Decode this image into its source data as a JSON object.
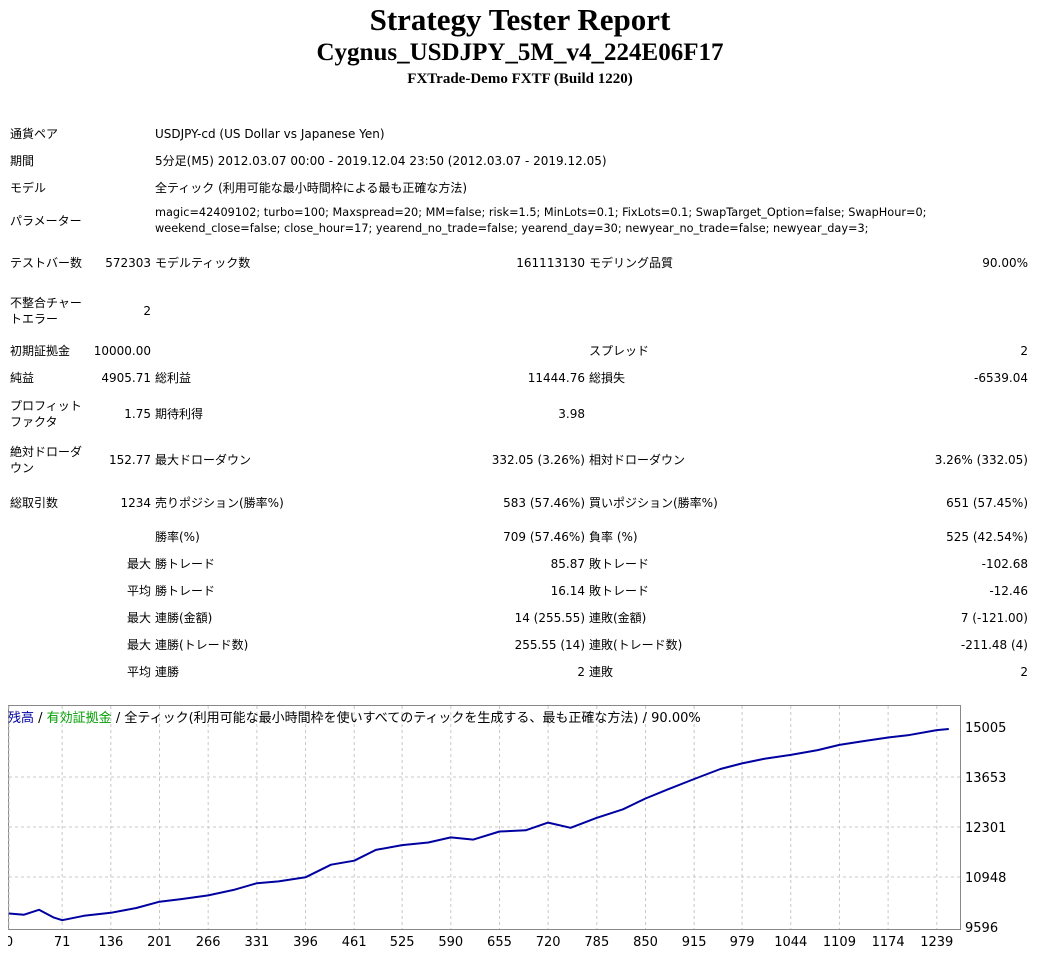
{
  "header": {
    "title": "Strategy Tester Report",
    "ea_name": "Cygnus_USDJPY_5M_v4_224E06F17",
    "server": "FXTrade-Demo FXTF (Build 1220)"
  },
  "info": {
    "symbol_label": "通貨ペア",
    "symbol_value": "USDJPY-cd (US Dollar vs Japanese Yen)",
    "period_label": "期間",
    "period_value": "5分足(M5) 2012.03.07 00:00 - 2019.12.04 23:50 (2012.03.07 - 2019.12.05)",
    "model_label": "モデル",
    "model_value": "全ティック (利用可能な最小時間枠による最も正確な方法)",
    "params_label": "パラメーター",
    "params_value": "magic=42409102; turbo=100; Maxspread=20; MM=false; risk=1.5; MinLots=0.1; FixLots=0.1; SwapTarget_Option=false; SwapHour=0; weekend_close=false; close_hour=17; yearend_no_trade=false; yearend_day=30; newyear_no_trade=false; newyear_day=3;"
  },
  "stats": {
    "bars_label": "テストバー数",
    "bars_value": "572303",
    "ticks_label": "モデルティック数",
    "ticks_value": "161113130",
    "quality_label": "モデリング品質",
    "quality_value": "90.00%",
    "mismatch_label": "不整合チャートエラー",
    "mismatch_value": "2",
    "deposit_label": "初期証拠金",
    "deposit_value": "10000.00",
    "spread_label": "スプレッド",
    "spread_value": "2",
    "net_label": "純益",
    "net_value": "4905.71",
    "gross_profit_label": "総利益",
    "gross_profit_value": "11444.76",
    "gross_loss_label": "総損失",
    "gross_loss_value": "-6539.04",
    "pf_label": "プロフィットファクタ",
    "pf_value": "1.75",
    "expected_label": "期待利得",
    "expected_value": "3.98",
    "abs_dd_label": "絶対ドローダウン",
    "abs_dd_value": "152.77",
    "max_dd_label": "最大ドローダウン",
    "max_dd_value": "332.05 (3.26%)",
    "rel_dd_label": "相対ドローダウン",
    "rel_dd_value": "3.26% (332.05)",
    "trades_label": "総取引数",
    "trades_value": "1234",
    "short_label": "売りポジション(勝率%)",
    "short_value": "583 (57.46%)",
    "long_label": "買いポジション(勝率%)",
    "long_value": "651 (57.45%)",
    "win_label": "勝率(%)",
    "win_value": "709 (57.46%)",
    "loss_label": "負率 (%)",
    "loss_value": "525 (42.54%)",
    "max_word": "最大",
    "avg_word": "平均",
    "win_trade_label": "勝トレード",
    "loss_trade_label": "敗トレード",
    "max_win_value": "85.87",
    "max_loss_value": "-102.68",
    "avg_win_value": "16.14",
    "avg_loss_value": "-12.46",
    "consec_win_money_label": "連勝(金額)",
    "consec_win_money_value": "14 (255.55)",
    "consec_loss_money_label": "連敗(金額)",
    "consec_loss_money_value": "7 (-121.00)",
    "consec_win_count_label": "連勝(トレード数)",
    "consec_win_count_value": "255.55 (14)",
    "consec_loss_count_label": "連敗(トレード数)",
    "consec_loss_count_value": "-211.48 (4)",
    "avg_consec_win_label": "連勝",
    "avg_consec_win_value": "2",
    "avg_consec_loss_label": "連敗",
    "avg_consec_loss_value": "2"
  },
  "chart_legend": {
    "balance": "残高",
    "sep1": " / ",
    "equity": "有効証拠金",
    "sep2": " / ",
    "model": "全ティック(利用可能な最小時間枠を使いすべてのティックを生成する、最も正確な方法) / 90.00%"
  },
  "colors": {
    "balance": "#0000a0",
    "equity": "#00a000",
    "grid": "#c8c8c8"
  },
  "chart_data": {
    "type": "line",
    "title": "",
    "xlabel": "",
    "ylabel": "",
    "x_ticks": [
      "0",
      "71",
      "136",
      "201",
      "266",
      "331",
      "396",
      "461",
      "525",
      "590",
      "655",
      "720",
      "785",
      "850",
      "915",
      "979",
      "1044",
      "1109",
      "1174",
      "1239"
    ],
    "y_ticks": [
      "15005",
      "13653",
      "12301",
      "10948",
      "9596"
    ],
    "xlim": [
      0,
      1270
    ],
    "ylim": [
      9596,
      15005
    ],
    "grid": true,
    "series": [
      {
        "name": "残高",
        "x": [
          0,
          20,
          40,
          60,
          71,
          100,
          136,
          170,
          201,
          230,
          266,
          300,
          331,
          360,
          396,
          430,
          461,
          490,
          525,
          560,
          590,
          620,
          655,
          690,
          720,
          750,
          785,
          820,
          850,
          880,
          915,
          950,
          979,
          1010,
          1044,
          1080,
          1109,
          1140,
          1174,
          1200,
          1239,
          1255
        ],
        "y": [
          9960,
          9930,
          10060,
          9850,
          9780,
          9900,
          9980,
          10110,
          10280,
          10350,
          10450,
          10600,
          10780,
          10830,
          10940,
          11280,
          11390,
          11680,
          11810,
          11880,
          12020,
          11960,
          12180,
          12210,
          12420,
          12280,
          12550,
          12780,
          13070,
          13320,
          13600,
          13870,
          14020,
          14150,
          14250,
          14380,
          14520,
          14620,
          14720,
          14780,
          14920,
          14950
        ]
      }
    ]
  }
}
